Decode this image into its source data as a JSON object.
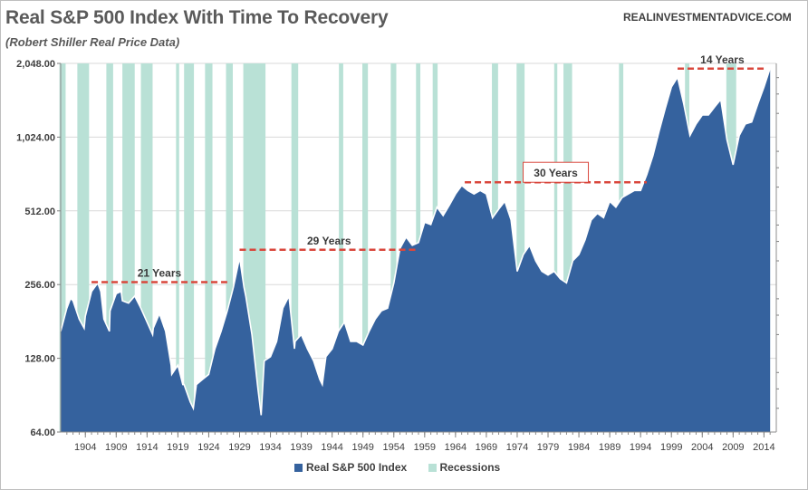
{
  "header": {
    "title": "Real S&P 500 Index With Time To Recovery",
    "subtitle": "(Robert Shiller Real Price Data)",
    "brand": "REALINVESTMENTADVICE.COM"
  },
  "legend": {
    "series_label": "Real S&P 500 Index",
    "recessions_label": "Recessions"
  },
  "colors": {
    "area": "#35629e",
    "outline": "#ffffff",
    "recession": "#b9e1d6",
    "dash": "#d9473c",
    "box": "#d9473c",
    "grid": "#d9d9d9"
  },
  "chart_data": {
    "type": "area",
    "title": "Real S&P 500 Index With Time To Recovery",
    "subtitle": "(Robert Shiller Real Price Data)",
    "yscale": "log2",
    "ylim": [
      64,
      2048
    ],
    "xlim": [
      1900,
      2016
    ],
    "ytick_labels": [
      "64.00",
      "128.00",
      "256.00",
      "512.00",
      "1,024.00",
      "2,048.00"
    ],
    "ytick_values": [
      64,
      128,
      256,
      512,
      1024,
      2048
    ],
    "xtick_labels": [
      "1904",
      "1909",
      "1914",
      "1919",
      "1924",
      "1929",
      "1934",
      "1939",
      "1944",
      "1949",
      "1954",
      "1959",
      "1964",
      "1969",
      "1974",
      "1979",
      "1984",
      "1989",
      "1994",
      "1999",
      "2004",
      "2009",
      "2014"
    ],
    "xtick_values": [
      1904,
      1909,
      1914,
      1919,
      1924,
      1929,
      1934,
      1939,
      1944,
      1949,
      1954,
      1959,
      1964,
      1969,
      1974,
      1979,
      1984,
      1989,
      1994,
      1999,
      2004,
      2009,
      2014
    ],
    "series": [
      {
        "name": "Real S&P 500 Index",
        "x": [
          1900,
          1901,
          1901.6,
          1902,
          1903,
          1903.8,
          1904,
          1905,
          1906,
          1906.5,
          1907,
          1907.9,
          1908,
          1909,
          1909.8,
          1910,
          1911,
          1912,
          1913,
          1914,
          1914.9,
          1915,
          1916,
          1917,
          1917.9,
          1918,
          1919,
          1919.8,
          1920,
          1921,
          1921.5,
          1922,
          1923,
          1924,
          1925,
          1926,
          1927,
          1928,
          1929,
          1929.7,
          1930,
          1931,
          1932,
          1932.5,
          1933,
          1934,
          1935,
          1936,
          1937,
          1937.9,
          1938,
          1939,
          1940,
          1941,
          1942,
          1942.4,
          1943,
          1944,
          1945,
          1946,
          1947,
          1948,
          1949,
          1950,
          1951,
          1952,
          1953,
          1954,
          1955,
          1956,
          1957,
          1958,
          1959,
          1960,
          1961,
          1962,
          1963,
          1964,
          1965,
          1966,
          1967,
          1968,
          1969,
          1970,
          1971,
          1972,
          1973,
          1974,
          1975,
          1976,
          1977,
          1978,
          1979,
          1980,
          1981,
          1982,
          1983,
          1984,
          1985,
          1986,
          1987,
          1988,
          1989,
          1990,
          1991,
          1992,
          1993,
          1994,
          1995,
          1996,
          1997,
          1998,
          1999,
          2000,
          2001,
          2002,
          2003,
          2004,
          2005,
          2006,
          2007,
          2008,
          2009,
          2010,
          2011,
          2012,
          2013,
          2014,
          2015
        ],
        "values": [
          165,
          205,
          225,
          220,
          185,
          170,
          190,
          240,
          260,
          240,
          185,
          165,
          200,
          235,
          240,
          220,
          215,
          230,
          205,
          180,
          160,
          170,
          195,
          165,
          120,
          110,
          120,
          100,
          100,
          85,
          80,
          100,
          105,
          110,
          140,
          165,
          200,
          250,
          330,
          250,
          230,
          160,
          95,
          75,
          125,
          130,
          150,
          205,
          230,
          140,
          150,
          160,
          140,
          125,
          105,
          100,
          130,
          140,
          165,
          180,
          150,
          150,
          145,
          165,
          185,
          200,
          205,
          260,
          360,
          400,
          370,
          380,
          460,
          450,
          530,
          490,
          540,
          600,
          650,
          620,
          600,
          620,
          600,
          480,
          520,
          560,
          470,
          290,
          340,
          370,
          320,
          290,
          280,
          290,
          270,
          260,
          320,
          340,
          390,
          470,
          500,
          480,
          560,
          530,
          580,
          600,
          620,
          620,
          720,
          860,
          1080,
          1340,
          1640,
          1800,
          1400,
          1040,
          1160,
          1260,
          1260,
          1360,
          1460,
          1000,
          790,
          1040,
          1160,
          1180,
          1400,
          1640,
          1960
        ]
      }
    ],
    "recession_periods": [
      [
        1899.8,
        1900.8
      ],
      [
        1902.7,
        1904.6
      ],
      [
        1907.4,
        1908.5
      ],
      [
        1910,
        1912
      ],
      [
        1913,
        1914.9
      ],
      [
        1918.7,
        1919.2
      ],
      [
        1920,
        1921.6
      ],
      [
        1923.4,
        1924.6
      ],
      [
        1926.8,
        1927.9
      ],
      [
        1929.6,
        1933.2
      ],
      [
        1937.4,
        1938.5
      ],
      [
        1945.1,
        1945.8
      ],
      [
        1948.9,
        1949.8
      ],
      [
        1953.5,
        1954.4
      ],
      [
        1957.6,
        1958.3
      ],
      [
        1960.3,
        1961.1
      ],
      [
        1969.9,
        1970.9
      ],
      [
        1973.9,
        1975.2
      ],
      [
        1980,
        1980.5
      ],
      [
        1981.5,
        1982.9
      ],
      [
        1990.5,
        1991.2
      ],
      [
        2001.2,
        2001.9
      ],
      [
        2007.9,
        2009.5
      ]
    ],
    "recovery_periods": [
      {
        "label": "21 Years",
        "start": 1905,
        "end": 1927,
        "level": 262
      },
      {
        "label": "29 Years",
        "start": 1929,
        "end": 1958,
        "level": 355
      },
      {
        "label": "30 Years",
        "start": 1965.5,
        "end": 1995,
        "level": 670,
        "boxed": true
      },
      {
        "label": "14 Years",
        "start": 2000,
        "end": 2014.5,
        "level": 1950
      }
    ]
  }
}
